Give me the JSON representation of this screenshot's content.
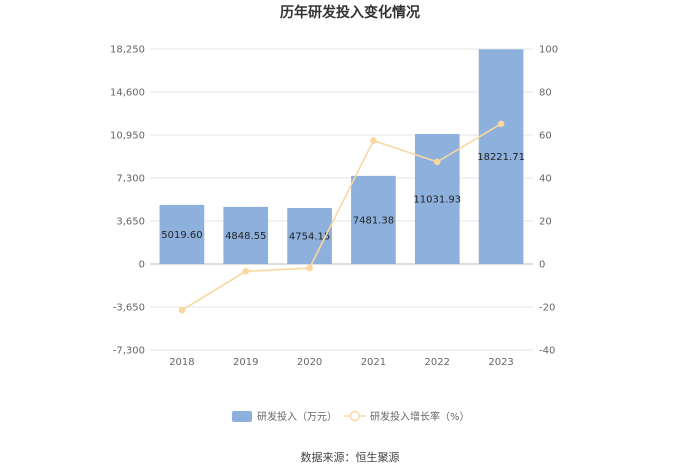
{
  "chart_data": {
    "type": "bar",
    "title": "历年研发投入变化情况",
    "categories": [
      "2018",
      "2019",
      "2020",
      "2021",
      "2022",
      "2023"
    ],
    "series": [
      {
        "name": "研发投入（万元）",
        "type": "bar",
        "axis": "left",
        "color": "#8eb0dd",
        "values": [
          5019.6,
          4848.55,
          4754.15,
          7481.38,
          11031.93,
          18221.71
        ],
        "labels": [
          "5019.60",
          "4848.55",
          "4754.15",
          "7481.38",
          "11031.93",
          "18221.71"
        ]
      },
      {
        "name": "研发投入增长率（%）",
        "type": "line",
        "axis": "right",
        "color": "#f8d8a0",
        "values": [
          -21.5,
          -3.4,
          -1.9,
          57.4,
          47.5,
          65.2
        ]
      }
    ],
    "left_axis": {
      "ylim": [
        -7300,
        18250
      ],
      "ticks": [
        18250,
        14600,
        10950,
        7300,
        3650,
        0,
        -3650,
        -7300
      ],
      "tick_labels": [
        "18,250",
        "14,600",
        "10,950",
        "7,300",
        "3,650",
        "0",
        "-3,650",
        "-7,300"
      ]
    },
    "right_axis": {
      "ylim": [
        -40,
        100
      ],
      "ticks": [
        100,
        80,
        60,
        40,
        20,
        0,
        -20,
        -40
      ],
      "tick_labels": [
        "100",
        "80",
        "60",
        "40",
        "20",
        "0",
        "-20",
        "-40"
      ]
    },
    "grid": true,
    "legend_position": "bottom",
    "source": "数据来源：恒生聚源"
  }
}
